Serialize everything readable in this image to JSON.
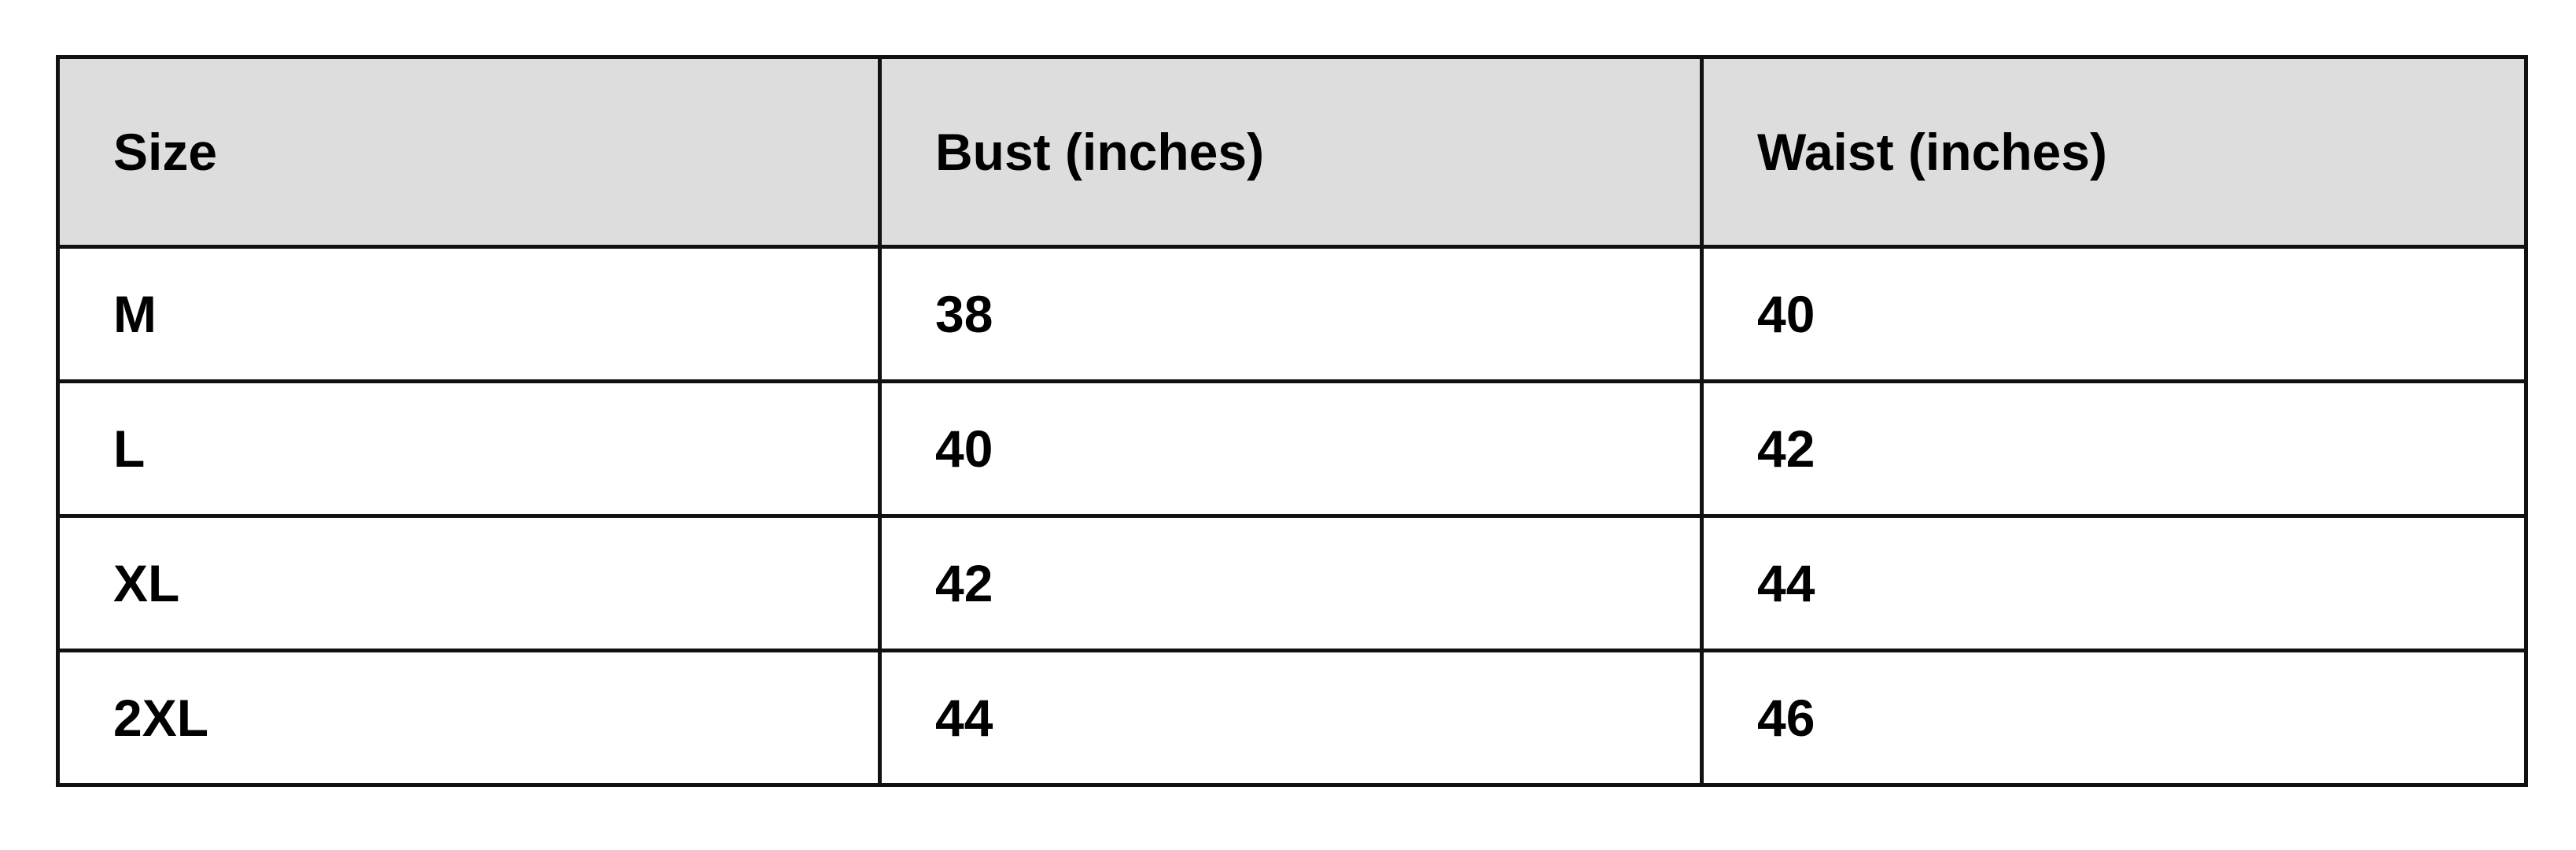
{
  "table": {
    "header_bg": "#dddddd",
    "columns": [
      "Size",
      "Bust (inches)",
      "Waist (inches)"
    ],
    "rows": [
      [
        "M",
        "38",
        "40"
      ],
      [
        "L",
        "40",
        "42"
      ],
      [
        "XL",
        "42",
        "44"
      ],
      [
        "2XL",
        "44",
        "46"
      ]
    ]
  }
}
